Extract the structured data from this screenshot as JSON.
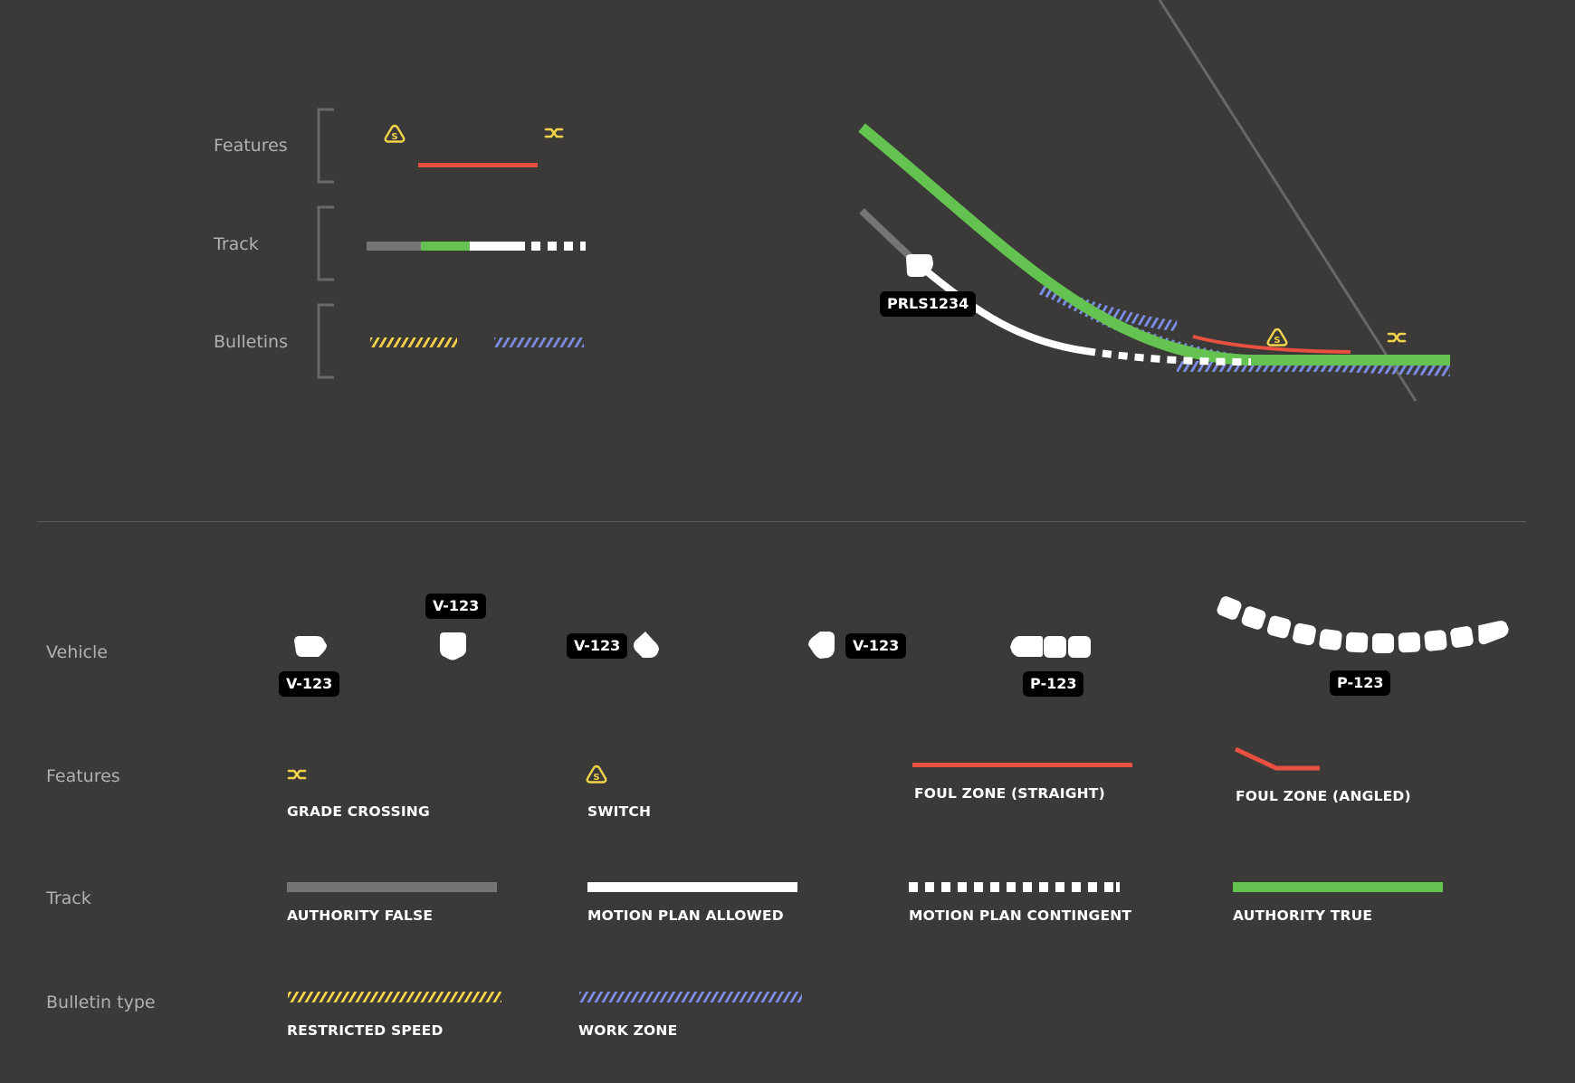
{
  "colors": {
    "background": "#3b3a39",
    "authority_false": "#757575",
    "authority_true": "#64c350",
    "motion_plan": "#ffffff",
    "foul_zone": "#e8513f",
    "restricted_speed": "#f2d34a",
    "work_zone": "#7c8fe8",
    "label_gray": "#b3b1ae",
    "tag_bg": "#000000"
  },
  "icons": {
    "switch": "switch-icon",
    "grade_crossing": "grade-crossing-icon"
  },
  "top_legend": {
    "features_label": "Features",
    "track_label": "Track",
    "bulletins_label": "Bulletins"
  },
  "map_view": {
    "vehicle_tag": "PRLS1234"
  },
  "vehicle_section": {
    "label": "Vehicle",
    "tags": [
      "V-123",
      "V-123",
      "V-123",
      "V-123",
      "P-123",
      "P-123"
    ]
  },
  "features_section": {
    "label": "Features",
    "items": [
      "GRADE CROSSING",
      "SWITCH",
      "FOUL ZONE (STRAIGHT)",
      "FOUL ZONE (ANGLED)"
    ]
  },
  "track_section": {
    "label": "Track",
    "items": [
      "AUTHORITY FALSE",
      "MOTION PLAN ALLOWED",
      "MOTION PLAN CONTINGENT",
      "AUTHORITY TRUE"
    ]
  },
  "bulletin_section": {
    "label": "Bulletin type",
    "items": [
      "RESTRICTED SPEED",
      "WORK ZONE"
    ]
  }
}
